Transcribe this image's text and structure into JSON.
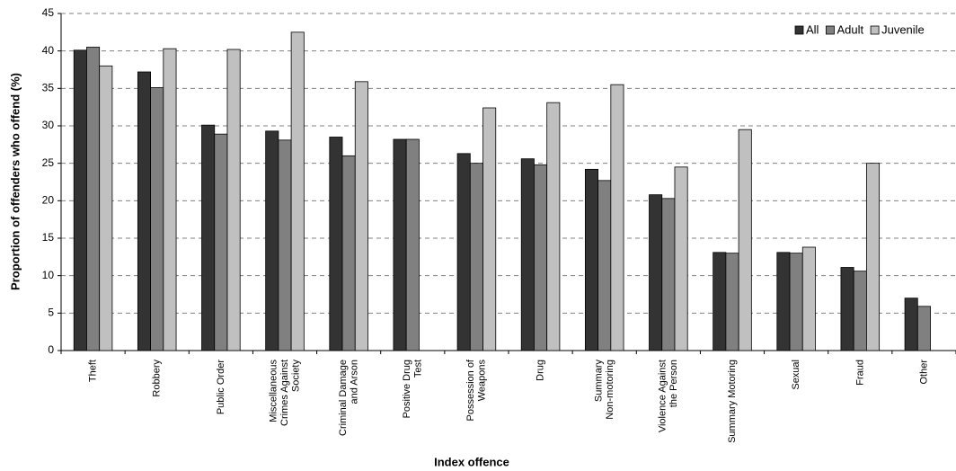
{
  "chart_data": {
    "type": "bar",
    "x_label": "Index offence",
    "y_label": "Proportion of offenders who offend (%)",
    "categories": [
      "Theft",
      "Robbery",
      "Public Order",
      "Miscellaneous Crimes Against Society",
      "Criminal Damage and Arson",
      "Positive Drug Test",
      "Possession of Weapons",
      "Drug",
      "Summary Non-motoring",
      "Violence Against the Person",
      "Summary Motoring",
      "Sexual",
      "Fraud",
      "Other"
    ],
    "series": [
      {
        "name": "All",
        "color": "#333333",
        "values": [
          40.1,
          37.2,
          30.1,
          29.3,
          28.5,
          28.2,
          26.3,
          25.6,
          24.2,
          20.8,
          13.1,
          13.1,
          11.1,
          7.0
        ]
      },
      {
        "name": "Adult",
        "color": "#808080",
        "values": [
          40.5,
          35.1,
          28.9,
          28.1,
          26.0,
          28.2,
          25.0,
          24.8,
          22.7,
          20.3,
          13.0,
          13.0,
          10.6,
          5.9
        ]
      },
      {
        "name": "Juvenile",
        "color": "#c0c0c0",
        "values": [
          38.0,
          40.3,
          40.2,
          42.5,
          35.9,
          null,
          32.4,
          33.1,
          35.5,
          24.5,
          29.5,
          13.8,
          25.0,
          null
        ]
      }
    ],
    "ylim": [
      0,
      45
    ],
    "yticks": [
      0,
      5,
      10,
      15,
      20,
      25,
      30,
      35,
      40,
      45
    ],
    "grid": true,
    "legend": "top-right"
  }
}
